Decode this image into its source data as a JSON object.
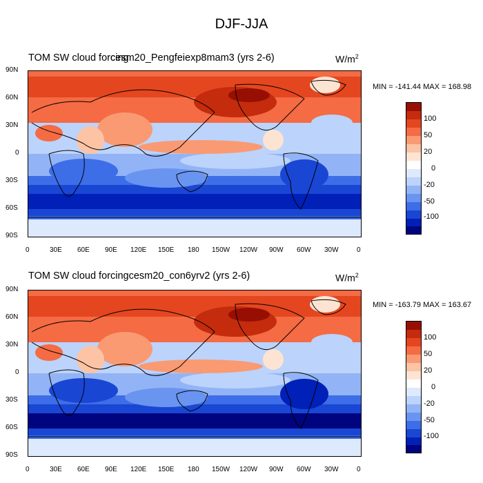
{
  "title": "DJF-JJA",
  "colors": {
    "scale": [
      "#00047f",
      "#0020b8",
      "#1a46d4",
      "#3d6ee8",
      "#6994f0",
      "#92b4f6",
      "#bcd3fb",
      "#dde9fc",
      "#ffffff",
      "#fde4d2",
      "#fcc3a5",
      "#f99a73",
      "#f46b44",
      "#e4461f",
      "#c42c0d",
      "#970f02"
    ],
    "land_outline": "#000000"
  },
  "panels": [
    {
      "title": "TOM SW cloud forcing",
      "case": "cesm20_Pengfeiexp8mam3 (yrs 2-6)",
      "units": "W/m",
      "units_sup": "2",
      "min": "-141.44",
      "max": "168.98",
      "min_label": "MIN =",
      "max_label": "MAX ="
    },
    {
      "title": "TOM SW cloud forcing",
      "case": "cesm20_con6yrv2 (yrs 2-6)",
      "units": "W/m",
      "units_sup": "2",
      "min": "-163.79",
      "max": "163.67",
      "min_label": "MIN =",
      "max_label": "MAX ="
    }
  ],
  "axes": {
    "lat_labels": [
      "90N",
      "60N",
      "30N",
      "0",
      "30S",
      "60S",
      "90S"
    ],
    "lon_labels": [
      "0",
      "30E",
      "60E",
      "90E",
      "120E",
      "150E",
      "180",
      "150W",
      "120W",
      "90W",
      "60W",
      "30W",
      "0"
    ]
  },
  "colorbar_labels": [
    "100",
    "50",
    "20",
    "0",
    "-20",
    "-50",
    "-100"
  ]
}
